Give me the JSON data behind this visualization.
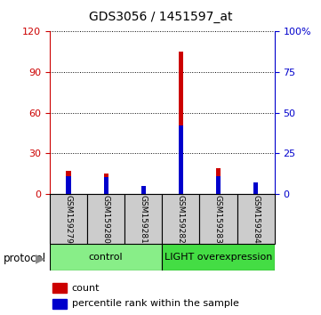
{
  "title": "GDS3056 / 1451597_at",
  "samples": [
    "GSM159279",
    "GSM159280",
    "GSM159281",
    "GSM159282",
    "GSM159283",
    "GSM159284"
  ],
  "count_values": [
    17,
    15,
    1,
    105,
    19,
    2
  ],
  "percentile_values": [
    11,
    10,
    5,
    42,
    11,
    7
  ],
  "groups": [
    {
      "label": "control",
      "color": "#88ee88"
    },
    {
      "label": "LIGHT overexpression",
      "color": "#44dd44"
    }
  ],
  "ylim_left": [
    0,
    120
  ],
  "ylim_right": [
    0,
    100
  ],
  "yticks_left": [
    0,
    30,
    60,
    90,
    120
  ],
  "yticks_right": [
    0,
    25,
    50,
    75,
    100
  ],
  "yticklabels_right": [
    "0",
    "25",
    "50",
    "75",
    "100%"
  ],
  "count_color": "#cc0000",
  "percentile_color": "#0000cc",
  "left_axis_color": "#cc0000",
  "right_axis_color": "#0000cc",
  "protocol_label": "protocol",
  "legend_count": "count",
  "legend_percentile": "percentile rank within the sample",
  "bg_label": "#cccccc"
}
